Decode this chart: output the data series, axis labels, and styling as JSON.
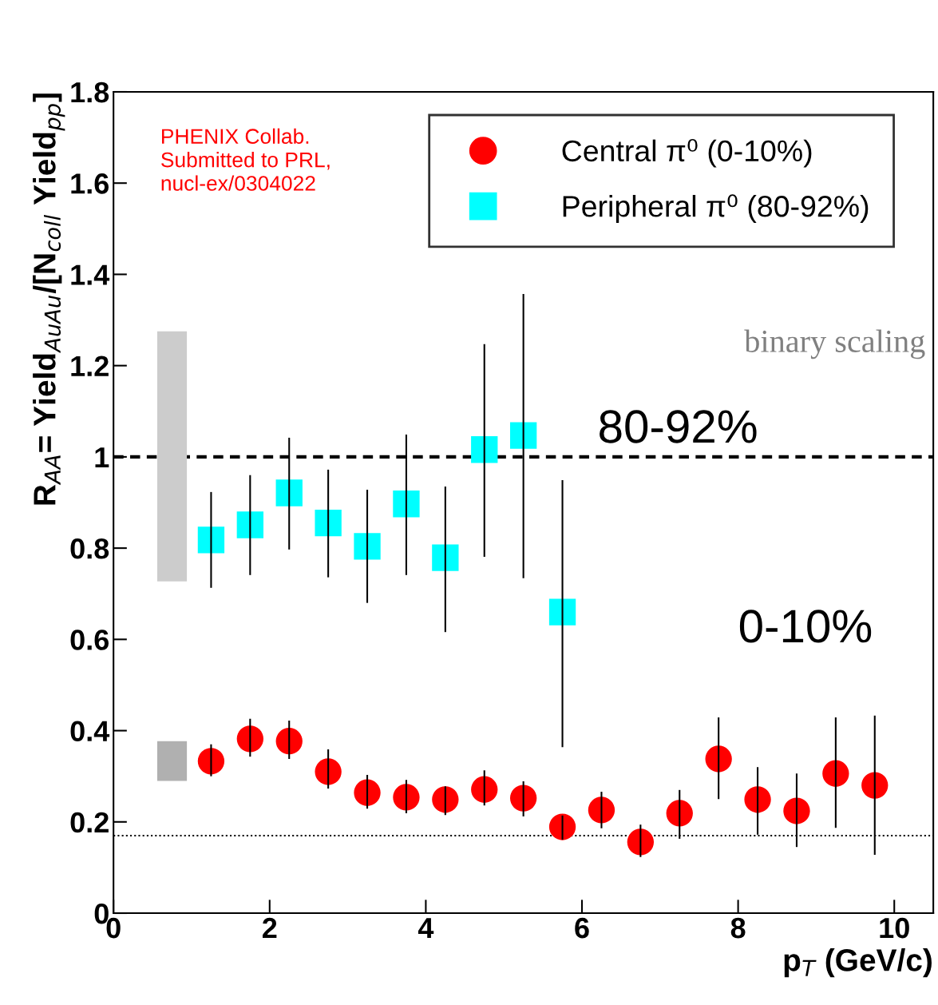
{
  "chart_data": {
    "type": "scatter",
    "xlabel": "p$_{T}$ (GeV/c)",
    "ylabel": "R$_{AA}$= Yield$_{AuAu}$/[N$_{coll}$ Yield$_{pp}$]",
    "xlim": [
      0,
      10.5
    ],
    "ylim": [
      0,
      1.8
    ],
    "xticks": [
      0,
      2,
      4,
      6,
      8,
      10
    ],
    "yticks": [
      0,
      0.2,
      0.4,
      0.6,
      0.8,
      1,
      1.2,
      1.4,
      1.6,
      1.8
    ],
    "legend": "top right",
    "grid": false,
    "series": [
      {
        "name": "Central π⁰ (0-10%)",
        "color": "#ff0000",
        "marker": "circle",
        "x": [
          1.25,
          1.75,
          2.25,
          2.75,
          3.25,
          3.75,
          4.25,
          4.75,
          5.25,
          5.75,
          6.25,
          6.75,
          7.25,
          7.75,
          8.25,
          8.75,
          9.25,
          9.75
        ],
        "values": [
          0.333,
          0.382,
          0.377,
          0.31,
          0.264,
          0.254,
          0.249,
          0.271,
          0.252,
          0.189,
          0.226,
          0.156,
          0.219,
          0.338,
          0.249,
          0.224,
          0.306,
          0.28
        ],
        "errors": [
          [
            0.3,
            0.37
          ],
          [
            0.343,
            0.426
          ],
          [
            0.338,
            0.422
          ],
          [
            0.273,
            0.359
          ],
          [
            0.229,
            0.303
          ],
          [
            0.219,
            0.292
          ],
          [
            0.215,
            0.278
          ],
          [
            0.236,
            0.313
          ],
          [
            0.212,
            0.289
          ],
          [
            0.161,
            0.214
          ],
          [
            0.186,
            0.266
          ],
          [
            0.123,
            0.194
          ],
          [
            0.163,
            0.27
          ],
          [
            0.25,
            0.429
          ],
          [
            0.172,
            0.32
          ],
          [
            0.145,
            0.306
          ],
          [
            0.187,
            0.429
          ],
          [
            0.128,
            0.433
          ]
        ]
      },
      {
        "name": "Peripheral π⁰ (80-92%)",
        "color": "#00ffff",
        "marker": "square",
        "x": [
          1.25,
          1.75,
          2.25,
          2.75,
          3.25,
          3.75,
          4.25,
          4.75,
          5.25,
          5.75
        ],
        "values": [
          0.818,
          0.851,
          0.921,
          0.855,
          0.804,
          0.897,
          0.779,
          1.016,
          1.047,
          0.66
        ],
        "errors": [
          [
            0.713,
            0.923
          ],
          [
            0.741,
            0.96
          ],
          [
            0.797,
            1.042
          ],
          [
            0.736,
            0.972
          ],
          [
            0.68,
            0.928
          ],
          [
            0.741,
            1.049
          ],
          [
            0.616,
            0.935
          ],
          [
            0.781,
            1.247
          ],
          [
            0.734,
            1.357
          ],
          [
            0.364,
            0.949
          ]
        ]
      },
      {
        "type": "bar",
        "color": "#cccccc",
        "x": [
          0.75
        ],
        "base": [
          0.727
        ],
        "values": [
          0.548
        ]
      },
      {
        "type": "bar",
        "color": "#b0b0b0",
        "x": [
          0.75
        ],
        "base": [
          0.29
        ],
        "values": [
          0.087
        ]
      }
    ],
    "ref_lines": [
      {
        "axis": "y",
        "value": 1,
        "line_style": "dashed",
        "color": "#000000"
      },
      {
        "axis": "y",
        "value": 0.17,
        "line_style": "dotted",
        "color": "#000000"
      }
    ],
    "annotations": [
      "PHENIX Collab.\nSubmitted to PRL,\nnucl-ex/0304022",
      "binary scaling",
      "80-92%",
      "0-10%"
    ]
  }
}
